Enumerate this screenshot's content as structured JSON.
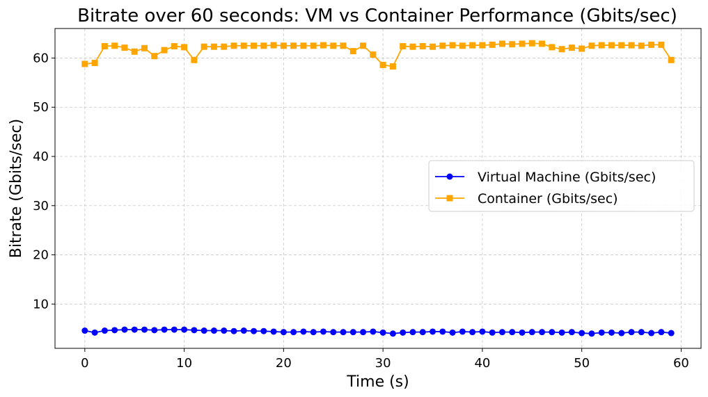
{
  "chart_data": {
    "type": "line",
    "title": "Bitrate over 60 seconds: VM vs Container Performance (Gbits/sec)",
    "xlabel": "Time (s)",
    "ylabel": "Bitrate (Gbits/sec)",
    "xlim": [
      -3,
      62
    ],
    "ylim": [
      1,
      66
    ],
    "xticks": [
      0,
      10,
      20,
      30,
      40,
      50,
      60
    ],
    "yticks": [
      10,
      20,
      30,
      40,
      50,
      60
    ],
    "grid": true,
    "legend_position": "center-right",
    "x": [
      0,
      1,
      2,
      3,
      4,
      5,
      6,
      7,
      8,
      9,
      10,
      11,
      12,
      13,
      14,
      15,
      16,
      17,
      18,
      19,
      20,
      21,
      22,
      23,
      24,
      25,
      26,
      27,
      28,
      29,
      30,
      31,
      32,
      33,
      34,
      35,
      36,
      37,
      38,
      39,
      40,
      41,
      42,
      43,
      44,
      45,
      46,
      47,
      48,
      49,
      50,
      51,
      52,
      53,
      54,
      55,
      56,
      57,
      58,
      59
    ],
    "series": [
      {
        "name": "Virtual Machine (Gbits/sec)",
        "color": "#0000ff",
        "marker": "circle",
        "values": [
          4.6,
          4.2,
          4.6,
          4.7,
          4.8,
          4.8,
          4.8,
          4.7,
          4.8,
          4.8,
          4.8,
          4.7,
          4.6,
          4.6,
          4.6,
          4.5,
          4.6,
          4.5,
          4.5,
          4.4,
          4.3,
          4.3,
          4.4,
          4.3,
          4.4,
          4.3,
          4.3,
          4.3,
          4.3,
          4.4,
          4.2,
          4.0,
          4.2,
          4.3,
          4.3,
          4.4,
          4.4,
          4.2,
          4.4,
          4.3,
          4.4,
          4.2,
          4.3,
          4.3,
          4.2,
          4.3,
          4.3,
          4.3,
          4.2,
          4.3,
          4.1,
          4.0,
          4.2,
          4.2,
          4.1,
          4.3,
          4.3,
          4.1,
          4.3,
          4.1
        ]
      },
      {
        "name": "Container (Gbits/sec)",
        "color": "#ffa500",
        "marker": "square",
        "values": [
          58.8,
          59.0,
          62.4,
          62.5,
          62.1,
          61.3,
          62.0,
          60.4,
          61.6,
          62.4,
          62.2,
          59.6,
          62.3,
          62.3,
          62.3,
          62.5,
          62.5,
          62.5,
          62.5,
          62.6,
          62.5,
          62.5,
          62.5,
          62.5,
          62.6,
          62.5,
          62.5,
          61.4,
          62.5,
          60.7,
          58.6,
          58.3,
          62.4,
          62.3,
          62.4,
          62.3,
          62.5,
          62.6,
          62.5,
          62.6,
          62.6,
          62.7,
          62.9,
          62.8,
          62.9,
          63.0,
          62.9,
          62.2,
          61.8,
          62.1,
          61.9,
          62.5,
          62.6,
          62.6,
          62.6,
          62.6,
          62.5,
          62.7,
          62.7,
          59.6
        ]
      }
    ]
  }
}
